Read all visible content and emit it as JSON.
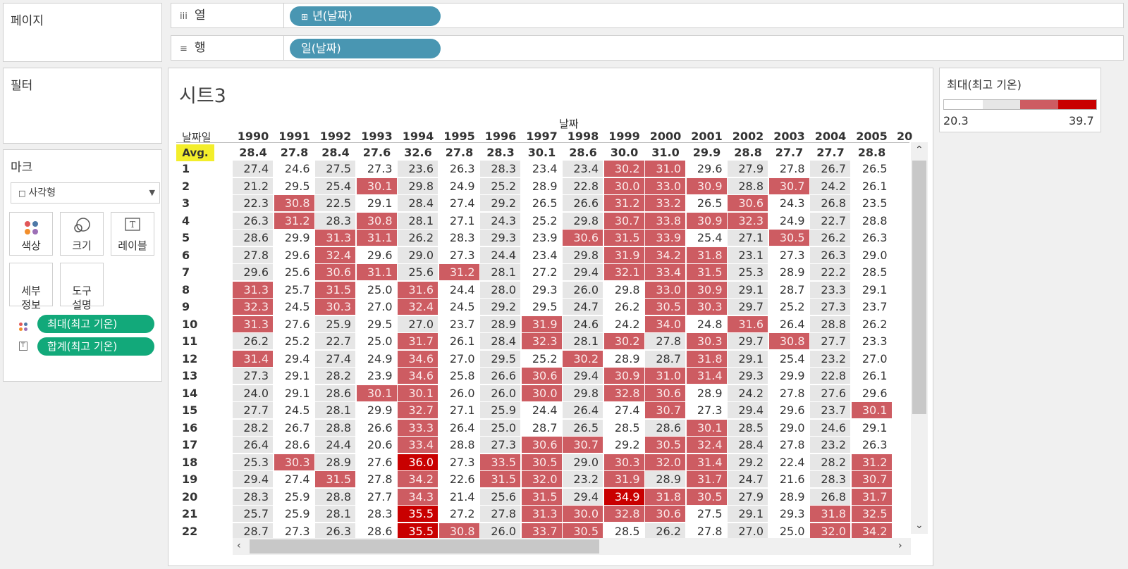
{
  "left_panel": {
    "pages_title": "페이지",
    "filters_title": "필터",
    "marks_title": "마크",
    "mark_type": "사각형",
    "mark_buttons": {
      "color": "색상",
      "size": "크기",
      "label": "레이블",
      "detail": "세부\n정보",
      "tooltip": "도구\n설명"
    },
    "pills": [
      {
        "label": "최대(최고 기온)"
      },
      {
        "label": "합계(최고 기온)"
      }
    ]
  },
  "shelves": {
    "columns": {
      "label": "열",
      "pill": "년(날짜)"
    },
    "rows": {
      "label": "행",
      "pill": "일(날짜)"
    }
  },
  "sheet": {
    "title": "시트3",
    "column_header": "날짜",
    "row_header": "날짜일",
    "avg_label": "Avg."
  },
  "legend": {
    "title": "최대(최고 기온)",
    "min": "20.3",
    "max": "39.7",
    "colors": [
      "#ffffff",
      "#e6e6e6",
      "#cd5c62",
      "#c90000"
    ]
  },
  "chart_data": {
    "type": "table",
    "years": [
      "1990",
      "1991",
      "1992",
      "1993",
      "1994",
      "1995",
      "1996",
      "1997",
      "1998",
      "1999",
      "2000",
      "2001",
      "2002",
      "2003",
      "2004",
      "2005",
      "20"
    ],
    "avg": [
      "28.4",
      "27.8",
      "28.4",
      "27.6",
      "32.6",
      "27.8",
      "28.3",
      "30.1",
      "28.6",
      "30.0",
      "31.0",
      "29.9",
      "28.8",
      "27.7",
      "27.7",
      "28.8"
    ],
    "rows": [
      {
        "day": "1",
        "values": [
          "27.4",
          "24.6",
          "27.5",
          "27.3",
          "23.6",
          "26.3",
          "28.3",
          "23.4",
          "23.4",
          "30.2",
          "31.0",
          "29.6",
          "27.9",
          "27.8",
          "26.7",
          "26.5"
        ]
      },
      {
        "day": "2",
        "values": [
          "21.2",
          "29.5",
          "25.4",
          "30.1",
          "29.8",
          "24.9",
          "25.2",
          "28.9",
          "22.8",
          "30.0",
          "33.0",
          "30.9",
          "28.8",
          "30.7",
          "24.2",
          "26.1"
        ]
      },
      {
        "day": "3",
        "values": [
          "22.3",
          "30.8",
          "22.5",
          "29.1",
          "28.4",
          "27.4",
          "29.2",
          "26.5",
          "26.6",
          "31.2",
          "33.2",
          "26.5",
          "30.6",
          "24.3",
          "26.8",
          "23.5"
        ]
      },
      {
        "day": "4",
        "values": [
          "26.3",
          "31.2",
          "28.3",
          "30.8",
          "28.1",
          "27.1",
          "24.3",
          "25.2",
          "29.8",
          "30.7",
          "33.8",
          "30.9",
          "32.3",
          "24.9",
          "22.7",
          "28.8"
        ]
      },
      {
        "day": "5",
        "values": [
          "28.6",
          "29.9",
          "31.3",
          "31.1",
          "26.2",
          "28.3",
          "29.3",
          "23.9",
          "30.6",
          "31.5",
          "33.9",
          "25.4",
          "27.1",
          "30.5",
          "26.2",
          "26.3"
        ]
      },
      {
        "day": "6",
        "values": [
          "27.8",
          "29.6",
          "32.4",
          "29.6",
          "29.0",
          "27.3",
          "24.4",
          "23.4",
          "29.8",
          "31.9",
          "34.2",
          "31.8",
          "23.1",
          "27.3",
          "26.3",
          "29.0"
        ]
      },
      {
        "day": "7",
        "values": [
          "29.6",
          "25.6",
          "30.6",
          "31.1",
          "25.6",
          "31.2",
          "28.1",
          "27.2",
          "29.4",
          "32.1",
          "33.4",
          "31.5",
          "25.3",
          "28.9",
          "22.2",
          "28.5"
        ]
      },
      {
        "day": "8",
        "values": [
          "31.3",
          "25.7",
          "31.5",
          "25.0",
          "31.6",
          "24.4",
          "28.0",
          "29.3",
          "26.0",
          "29.8",
          "33.0",
          "30.9",
          "29.1",
          "28.7",
          "23.3",
          "29.1"
        ]
      },
      {
        "day": "9",
        "values": [
          "32.3",
          "24.5",
          "30.3",
          "27.0",
          "32.4",
          "24.5",
          "29.2",
          "29.5",
          "24.7",
          "26.2",
          "30.5",
          "30.3",
          "29.7",
          "25.2",
          "27.3",
          "23.7"
        ]
      },
      {
        "day": "10",
        "values": [
          "31.3",
          "27.6",
          "25.9",
          "29.5",
          "27.0",
          "23.7",
          "28.9",
          "31.9",
          "24.6",
          "24.2",
          "34.0",
          "24.8",
          "31.6",
          "26.4",
          "28.8",
          "26.2"
        ]
      },
      {
        "day": "11",
        "values": [
          "26.2",
          "25.2",
          "22.7",
          "25.0",
          "31.7",
          "26.1",
          "28.4",
          "32.3",
          "28.1",
          "30.2",
          "27.8",
          "30.3",
          "29.7",
          "30.8",
          "27.7",
          "23.3"
        ]
      },
      {
        "day": "12",
        "values": [
          "31.4",
          "29.4",
          "27.4",
          "24.9",
          "34.6",
          "27.0",
          "29.5",
          "25.2",
          "30.2",
          "28.9",
          "28.7",
          "31.8",
          "29.1",
          "25.4",
          "23.2",
          "27.0"
        ]
      },
      {
        "day": "13",
        "values": [
          "27.3",
          "29.1",
          "28.2",
          "23.9",
          "34.6",
          "25.8",
          "26.6",
          "30.6",
          "29.4",
          "30.9",
          "31.0",
          "31.4",
          "29.3",
          "29.9",
          "22.8",
          "26.1"
        ]
      },
      {
        "day": "14",
        "values": [
          "24.0",
          "29.1",
          "28.6",
          "30.1",
          "30.1",
          "26.0",
          "26.0",
          "30.0",
          "29.8",
          "32.8",
          "30.6",
          "28.9",
          "24.2",
          "27.8",
          "27.6",
          "29.6"
        ]
      },
      {
        "day": "15",
        "values": [
          "27.7",
          "24.5",
          "28.1",
          "29.9",
          "32.7",
          "27.1",
          "25.9",
          "24.4",
          "26.4",
          "27.4",
          "30.7",
          "27.3",
          "29.4",
          "29.6",
          "23.7",
          "30.1"
        ]
      },
      {
        "day": "16",
        "values": [
          "28.2",
          "26.7",
          "28.8",
          "26.6",
          "33.3",
          "26.4",
          "25.0",
          "28.7",
          "26.5",
          "28.5",
          "28.6",
          "30.1",
          "28.5",
          "29.0",
          "24.6",
          "29.1"
        ]
      },
      {
        "day": "17",
        "values": [
          "26.4",
          "28.6",
          "24.4",
          "20.6",
          "33.4",
          "28.8",
          "27.3",
          "30.6",
          "30.7",
          "29.2",
          "30.5",
          "32.4",
          "28.4",
          "27.8",
          "23.2",
          "26.3"
        ]
      },
      {
        "day": "18",
        "values": [
          "25.3",
          "30.3",
          "28.9",
          "27.6",
          "36.0",
          "27.3",
          "33.5",
          "30.5",
          "29.0",
          "30.3",
          "32.0",
          "31.4",
          "29.2",
          "22.4",
          "28.2",
          "31.2"
        ]
      },
      {
        "day": "19",
        "values": [
          "29.4",
          "27.4",
          "31.5",
          "27.8",
          "34.2",
          "22.6",
          "31.5",
          "32.0",
          "23.2",
          "31.9",
          "28.9",
          "31.7",
          "24.7",
          "21.6",
          "28.3",
          "30.7"
        ]
      },
      {
        "day": "20",
        "values": [
          "28.3",
          "25.9",
          "28.8",
          "27.7",
          "34.3",
          "21.4",
          "25.6",
          "31.5",
          "29.4",
          "34.9",
          "31.8",
          "30.5",
          "27.9",
          "28.9",
          "26.8",
          "31.7"
        ]
      },
      {
        "day": "21",
        "values": [
          "25.7",
          "25.9",
          "28.1",
          "28.3",
          "35.5",
          "27.2",
          "27.8",
          "31.3",
          "30.0",
          "32.8",
          "30.6",
          "27.5",
          "29.1",
          "29.3",
          "31.8",
          "32.5"
        ]
      },
      {
        "day": "22",
        "values": [
          "28.7",
          "27.3",
          "26.3",
          "28.6",
          "35.5",
          "30.8",
          "26.0",
          "33.7",
          "30.5",
          "28.5",
          "26.2",
          "27.8",
          "27.0",
          "25.0",
          "32.0",
          "34.2"
        ]
      }
    ]
  }
}
